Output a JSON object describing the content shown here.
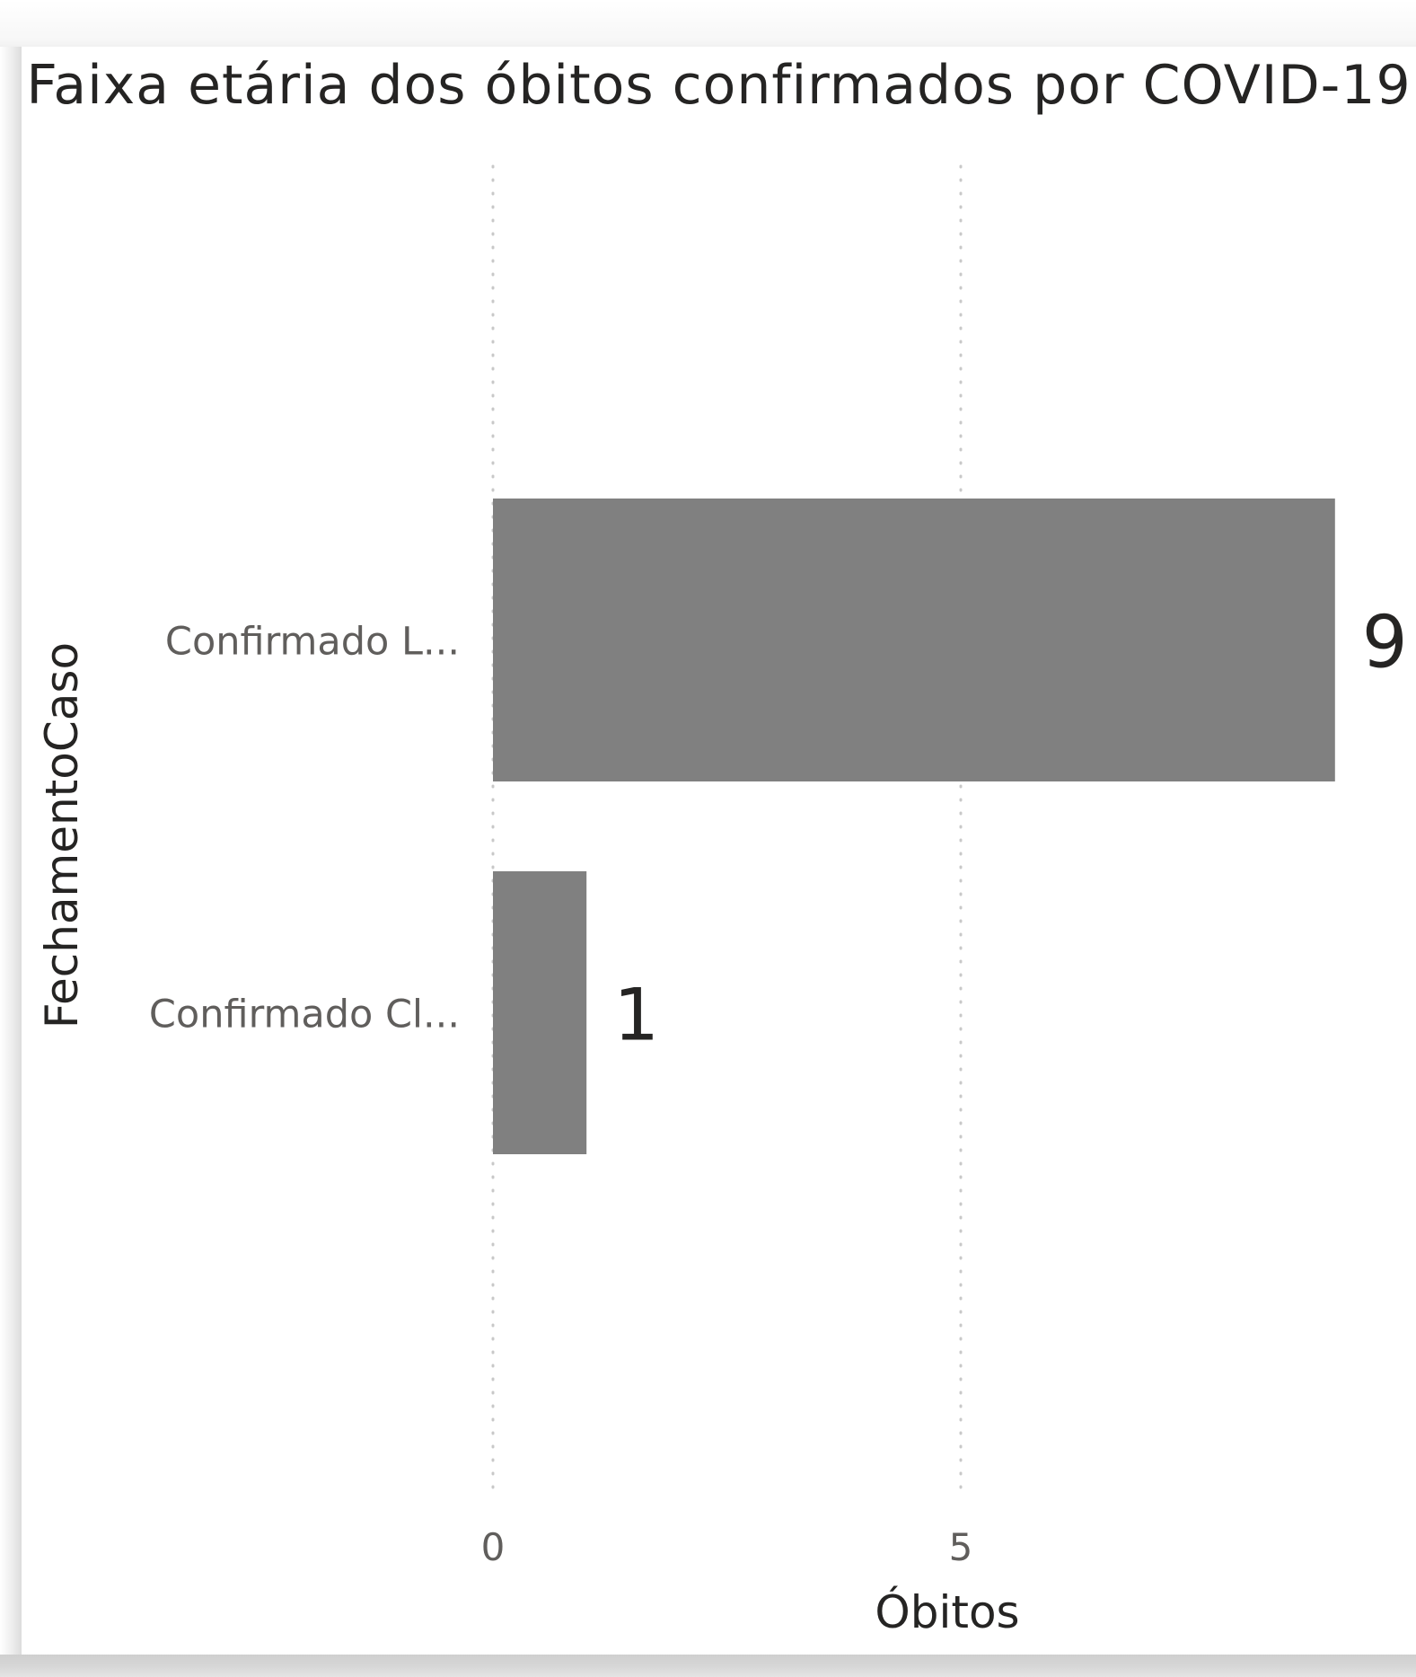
{
  "chart_data": {
    "type": "bar",
    "orientation": "horizontal",
    "title": "Faixa etária dos óbitos confirmados por COVID-19",
    "xlabel": "Óbitos",
    "ylabel": "FechamentoCaso",
    "categories": [
      "Confirmado L...",
      "Confirmado Cl..."
    ],
    "values": [
      9,
      1
    ],
    "data_labels": [
      "9",
      "1"
    ],
    "x_ticks": [
      0,
      5
    ],
    "x_tick_labels": [
      "0",
      "5"
    ],
    "xlim": [
      0,
      9
    ],
    "grid": true,
    "grid_style": "dotted vertical",
    "bar_color": "#808080"
  }
}
